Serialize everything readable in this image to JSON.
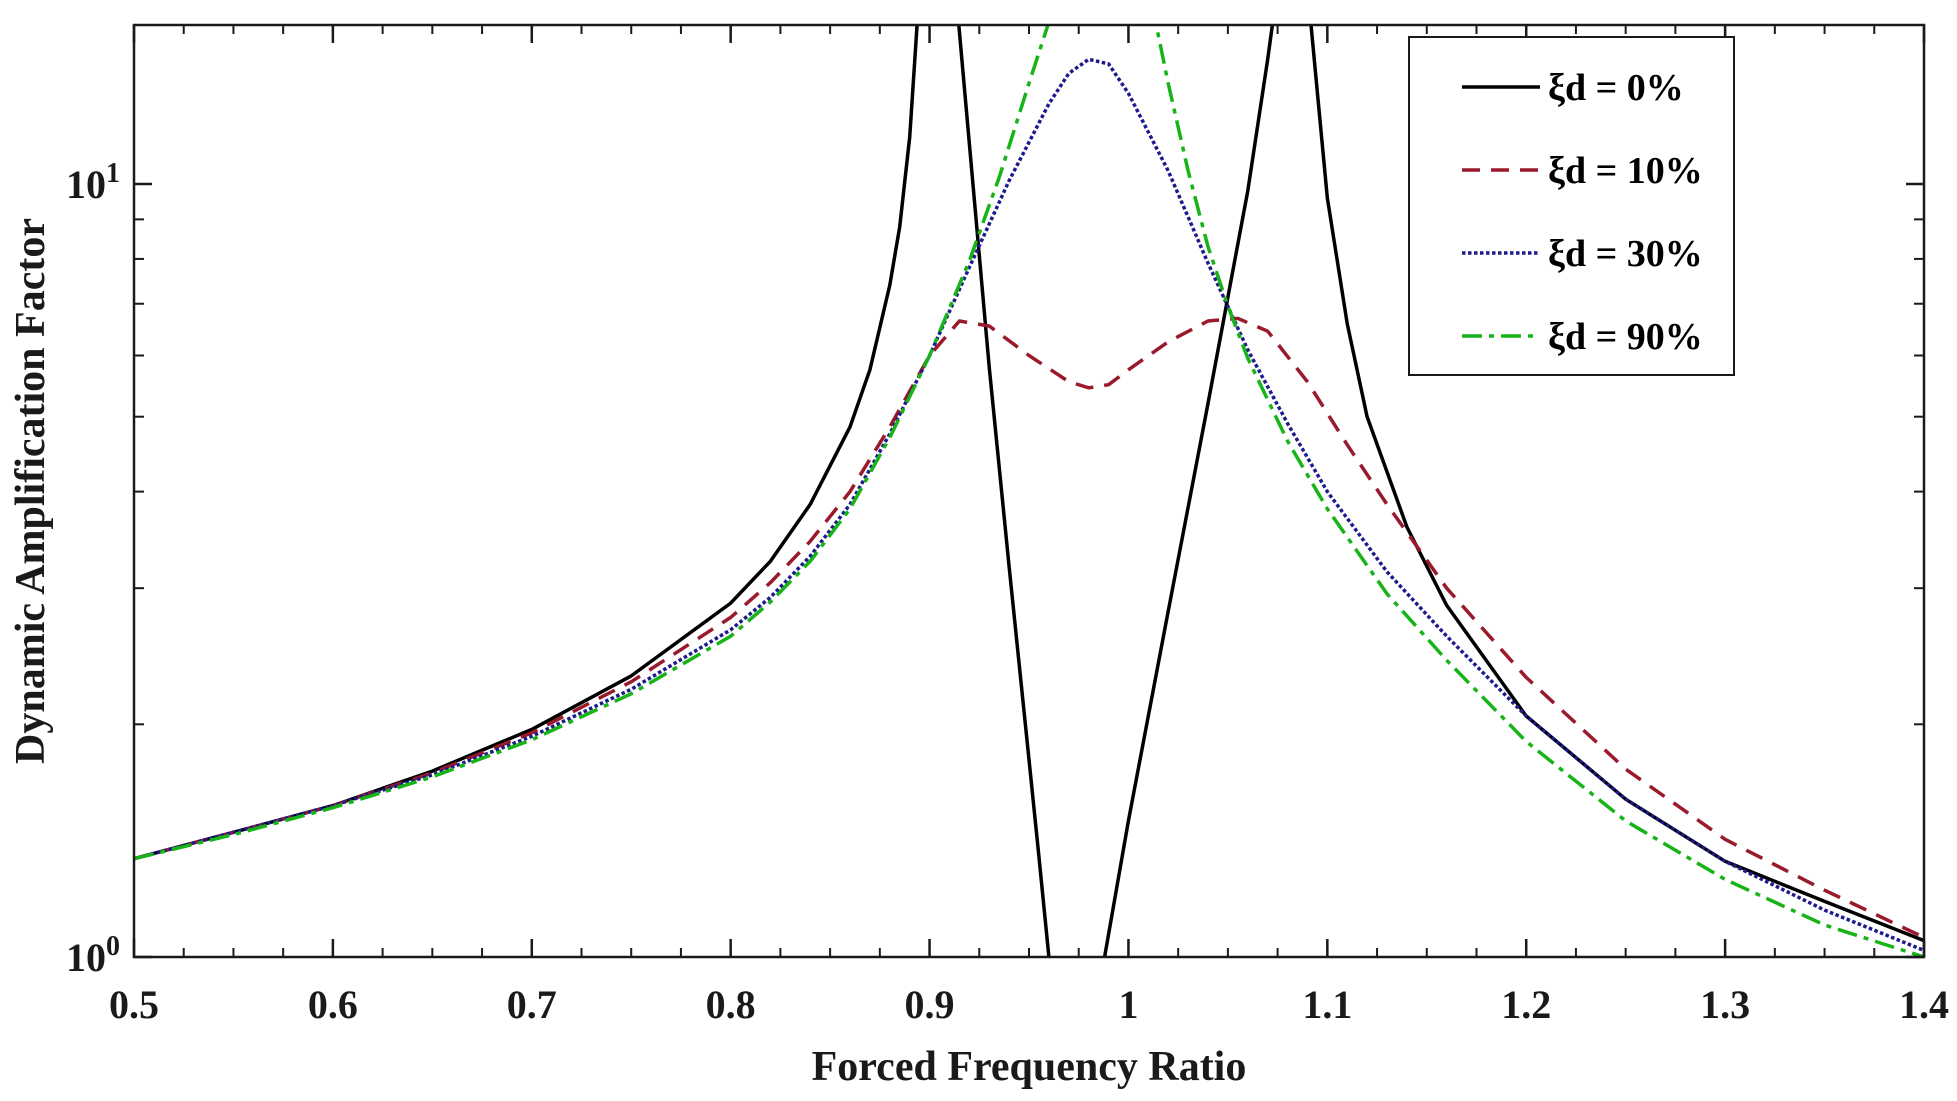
{
  "chart_data": {
    "type": "line",
    "title": "",
    "xlabel": "Forced Frequency Ratio",
    "ylabel": "Dynamic Amplification Factor",
    "xlim": [
      0.5,
      1.4
    ],
    "ylim": [
      1,
      16
    ],
    "yscale": "log",
    "x_ticks": [
      0.5,
      0.6,
      0.7,
      0.8,
      0.9,
      1.0,
      1.1,
      1.2,
      1.3,
      1.4
    ],
    "x_tick_labels": [
      "0.5",
      "0.6",
      "0.7",
      "0.8",
      "0.9",
      "1",
      "1.1",
      "1.2",
      "1.3",
      "1.4"
    ],
    "y_tick_labels": [
      {
        "value": 1,
        "base": "10",
        "exp": "0"
      },
      {
        "value": 10,
        "base": "10",
        "exp": "1"
      }
    ],
    "legend_position": "top-right",
    "series": [
      {
        "name": "ξd = 0%",
        "color": "#000000",
        "style": "solid",
        "x": [
          0.5,
          0.55,
          0.6,
          0.65,
          0.7,
          0.75,
          0.8,
          0.82,
          0.84,
          0.86,
          0.87,
          0.88,
          0.885,
          0.89,
          0.895
        ],
        "y": [
          1.34,
          1.45,
          1.57,
          1.74,
          1.97,
          2.31,
          2.87,
          3.25,
          3.85,
          4.85,
          5.75,
          7.4,
          8.8,
          11.5,
          18
        ],
        "segments": [
          {
            "x": [
              0.913,
              0.93,
              0.94,
              0.95,
              0.955,
              0.96
            ],
            "y": [
              18,
              5.8,
              3.2,
              1.8,
              1.35,
              1.0
            ]
          },
          {
            "x": [
              0.988,
              1.0,
              1.02,
              1.04,
              1.06,
              1.07,
              1.075
            ],
            "y": [
              1.0,
              1.5,
              2.8,
              5.2,
              9.8,
              14.5,
              18
            ]
          },
          {
            "x": [
              1.09,
              1.1,
              1.11,
              1.12,
              1.14,
              1.16,
              1.2,
              1.25,
              1.3,
              1.35,
              1.4
            ],
            "y": [
              18,
              9.6,
              6.6,
              5.0,
              3.6,
              2.85,
              2.05,
              1.6,
              1.33,
              1.18,
              1.05
            ]
          }
        ]
      },
      {
        "name": "ξd = 10%",
        "color": "#9a1a2c",
        "style": "dashed",
        "x": [
          0.5,
          0.55,
          0.6,
          0.65,
          0.7,
          0.75,
          0.8,
          0.82,
          0.84,
          0.86,
          0.88,
          0.9,
          0.915,
          0.93,
          0.95,
          0.97,
          0.98,
          0.99,
          1.0,
          1.02,
          1.04,
          1.055,
          1.07,
          1.09,
          1.11,
          1.13,
          1.16,
          1.2,
          1.25,
          1.3,
          1.35,
          1.4
        ],
        "y": [
          1.34,
          1.45,
          1.57,
          1.73,
          1.95,
          2.27,
          2.75,
          3.05,
          3.45,
          4.0,
          4.85,
          6.0,
          6.65,
          6.55,
          6.0,
          5.55,
          5.45,
          5.5,
          5.75,
          6.25,
          6.65,
          6.7,
          6.45,
          5.55,
          4.6,
          3.85,
          3.0,
          2.3,
          1.75,
          1.42,
          1.22,
          1.06
        ]
      },
      {
        "name": "ξd = 30%",
        "color": "#1c1a8c",
        "style": "dotted",
        "x": [
          0.5,
          0.55,
          0.6,
          0.65,
          0.7,
          0.75,
          0.8,
          0.82,
          0.84,
          0.86,
          0.88,
          0.9,
          0.92,
          0.94,
          0.96,
          0.97,
          0.98,
          0.99,
          1.0,
          1.02,
          1.04,
          1.06,
          1.08,
          1.1,
          1.13,
          1.16,
          1.2,
          1.25,
          1.3,
          1.35,
          1.4
        ],
        "y": [
          1.34,
          1.45,
          1.57,
          1.72,
          1.93,
          2.22,
          2.65,
          2.92,
          3.3,
          3.85,
          4.75,
          6.0,
          7.8,
          10.1,
          12.7,
          13.9,
          14.5,
          14.3,
          13.1,
          10.4,
          7.9,
          6.1,
          4.9,
          4.0,
          3.15,
          2.6,
          2.05,
          1.6,
          1.33,
          1.15,
          1.02
        ]
      },
      {
        "name": "ξd = 90%",
        "color": "#17b417",
        "style": "dashdot",
        "x": [
          0.5,
          0.55,
          0.6,
          0.65,
          0.7,
          0.75,
          0.8,
          0.82,
          0.84,
          0.86,
          0.88,
          0.9,
          0.92,
          0.935,
          0.95,
          0.96,
          0.962
        ],
        "y": [
          1.34,
          1.44,
          1.56,
          1.71,
          1.91,
          2.19,
          2.6,
          2.88,
          3.25,
          3.8,
          4.7,
          6.0,
          7.95,
          10.2,
          13.5,
          16.2,
          17
        ],
        "segments": [
          {
            "x": [
              1.012,
              1.02,
              1.03,
              1.04,
              1.05,
              1.06,
              1.08,
              1.1,
              1.13,
              1.16,
              1.2,
              1.25,
              1.3,
              1.35,
              1.4
            ],
            "y": [
              17,
              13.5,
              10.4,
              8.3,
              6.95,
              5.95,
              4.65,
              3.8,
              2.95,
              2.42,
              1.9,
              1.5,
              1.26,
              1.1,
              1.0
            ]
          }
        ]
      }
    ]
  }
}
